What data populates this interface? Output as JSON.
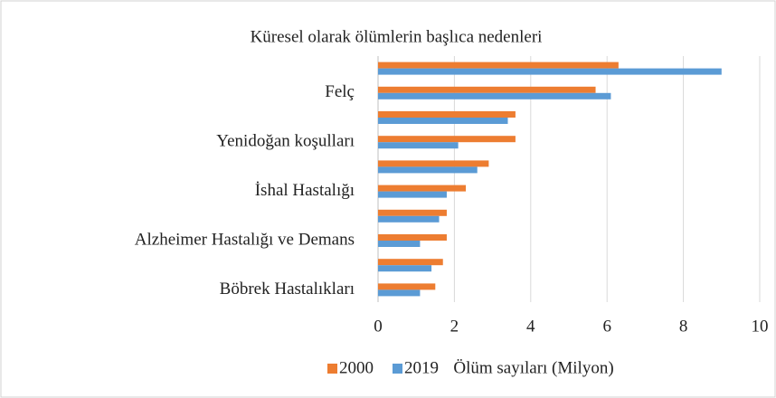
{
  "chart_data": {
    "type": "hbar",
    "title": "Küresel olarak ölümlerin başlıca nedenleri",
    "x_label": "Ölüm sayıları (Milyon)",
    "categories": [
      null,
      "Felç",
      null,
      "Yenidoğan koşulları",
      null,
      "İshal Hastalığı",
      null,
      "Alzheimer Hastalığı ve Demans",
      null,
      "Böbrek Hastalıkları"
    ],
    "series": [
      {
        "name": "2000",
        "color": "#ed7d31",
        "values": [
          6.3,
          5.7,
          3.6,
          3.6,
          2.9,
          2.3,
          1.8,
          1.8,
          1.7,
          1.5
        ]
      },
      {
        "name": "2019",
        "color": "#5b9bd5",
        "values": [
          9.0,
          6.1,
          3.4,
          2.1,
          2.6,
          1.8,
          1.6,
          1.1,
          1.4,
          1.1
        ]
      }
    ],
    "xlim": [
      0,
      10
    ],
    "xticks": [
      0,
      2,
      4,
      6,
      8,
      10
    ],
    "grid": true,
    "legend": "bottom"
  }
}
